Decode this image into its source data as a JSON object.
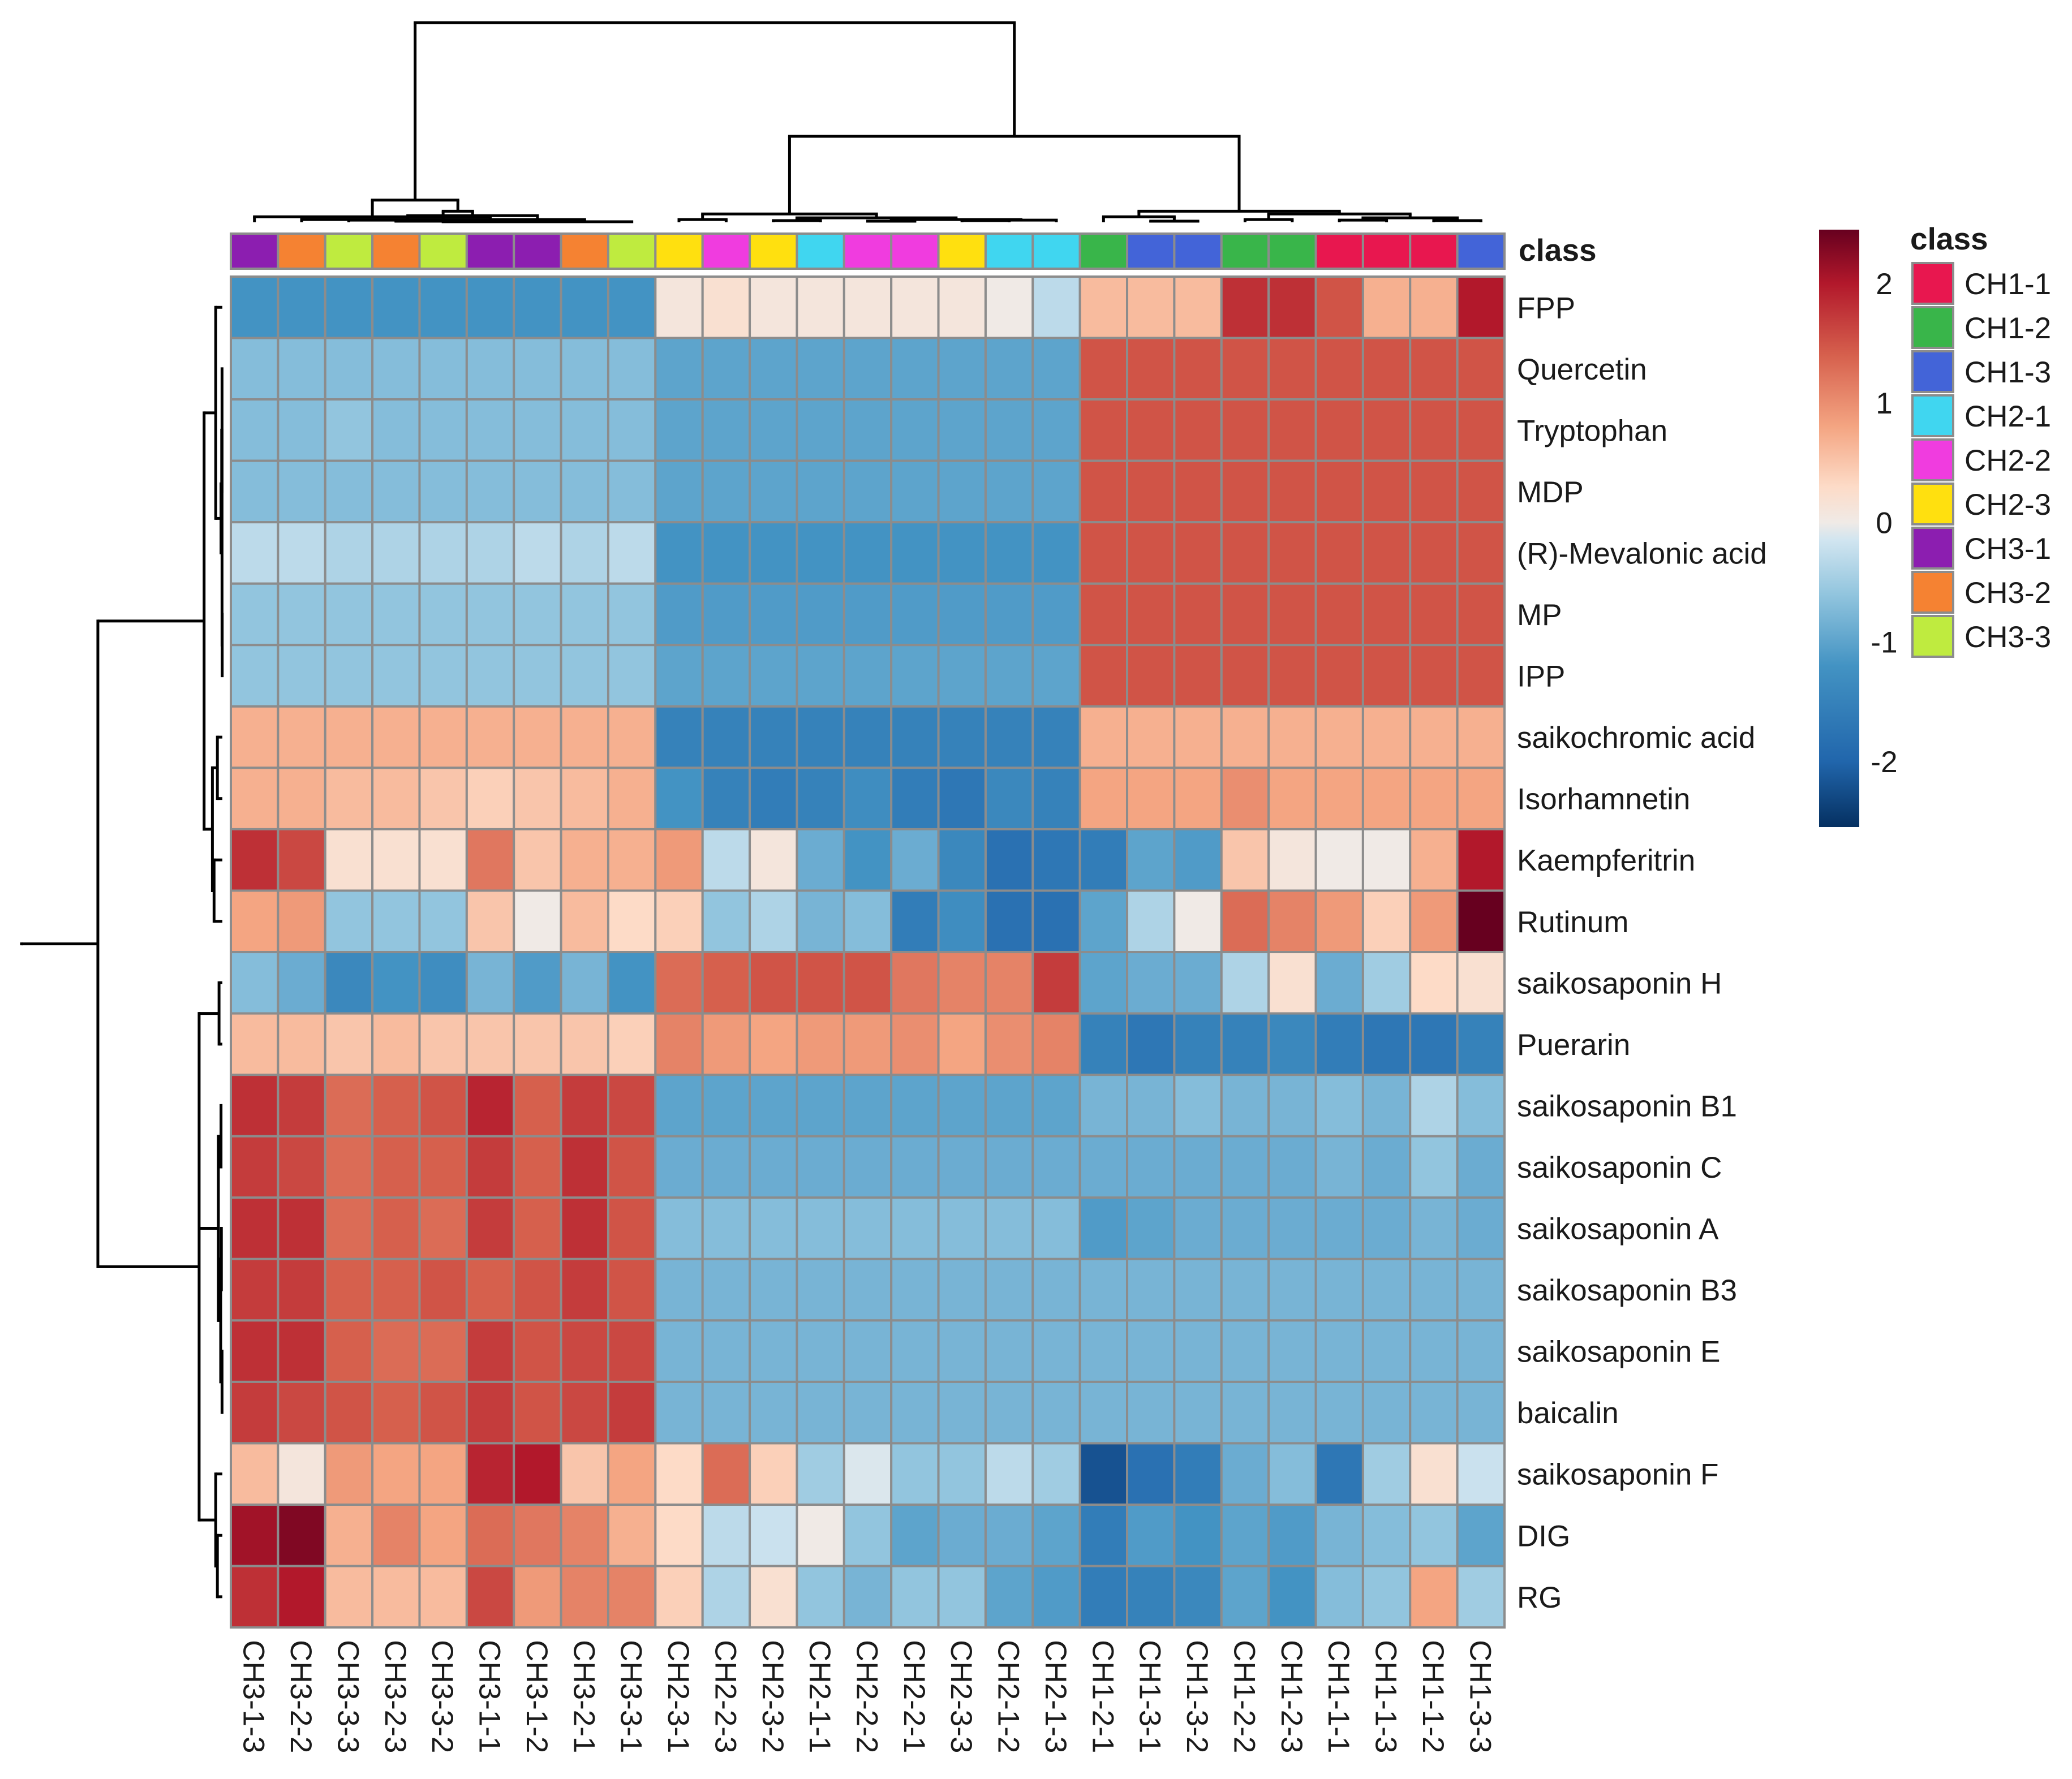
{
  "chart_data": {
    "type": "heatmap",
    "title": "",
    "annotation_title": "class",
    "legend_title": "class",
    "columns": [
      "CH3-1-3",
      "CH3-2-2",
      "CH3-3-3",
      "CH3-2-3",
      "CH3-3-2",
      "CH3-1-1",
      "CH3-1-2",
      "CH3-2-1",
      "CH3-3-1",
      "CH2-3-1",
      "CH2-2-3",
      "CH2-3-2",
      "CH2-1-1",
      "CH2-2-2",
      "CH2-2-1",
      "CH2-3-3",
      "CH2-1-2",
      "CH2-1-3",
      "CH1-2-1",
      "CH1-3-1",
      "CH1-3-2",
      "CH1-2-2",
      "CH1-2-3",
      "CH1-1-1",
      "CH1-1-3",
      "CH1-1-2",
      "CH1-3-3"
    ],
    "column_classes": [
      "CH3-1",
      "CH3-2",
      "CH3-3",
      "CH3-2",
      "CH3-3",
      "CH3-1",
      "CH3-1",
      "CH3-2",
      "CH3-3",
      "CH2-3",
      "CH2-2",
      "CH2-3",
      "CH2-1",
      "CH2-2",
      "CH2-2",
      "CH2-3",
      "CH2-1",
      "CH2-1",
      "CH1-2",
      "CH1-3",
      "CH1-3",
      "CH1-2",
      "CH1-2",
      "CH1-1",
      "CH1-1",
      "CH1-1",
      "CH1-3"
    ],
    "rows": [
      "FPP",
      "Quercetin",
      "Tryptophan",
      "MDP",
      "(R)-Mevalonic acid",
      "MP",
      "IPP",
      "saikochromic acid",
      "Isorhamnetin",
      "Kaempferitrin",
      "Rutinum",
      "saikosaponin H",
      "Puerarin",
      "saikosaponin B1",
      "saikosaponin C",
      "saikosaponin A",
      "saikosaponin B3",
      "saikosaponin E",
      "baicalin",
      "saikosaponin F",
      "DIG",
      "RG"
    ],
    "values": [
      [
        -1.2,
        -1.2,
        -1.2,
        -1.2,
        -1.2,
        -1.2,
        -1.2,
        -1.2,
        -1.2,
        0.1,
        0.2,
        0.1,
        0.1,
        0.1,
        0.1,
        0.1,
        0.0,
        -0.3,
        0.6,
        0.6,
        0.6,
        1.8,
        1.8,
        1.5,
        0.7,
        0.7,
        2.0
      ],
      [
        -0.7,
        -0.7,
        -0.7,
        -0.7,
        -0.7,
        -0.7,
        -0.7,
        -0.7,
        -0.7,
        -1.0,
        -1.0,
        -1.0,
        -1.0,
        -1.0,
        -1.0,
        -1.0,
        -1.0,
        -1.0,
        1.5,
        1.5,
        1.5,
        1.5,
        1.5,
        1.5,
        1.5,
        1.5,
        1.5
      ],
      [
        -0.7,
        -0.7,
        -0.6,
        -0.7,
        -0.7,
        -0.7,
        -0.7,
        -0.7,
        -0.7,
        -1.0,
        -1.0,
        -1.0,
        -1.0,
        -1.0,
        -1.0,
        -1.0,
        -1.0,
        -1.0,
        1.5,
        1.5,
        1.5,
        1.5,
        1.5,
        1.5,
        1.5,
        1.5,
        1.5
      ],
      [
        -0.7,
        -0.7,
        -0.7,
        -0.7,
        -0.7,
        -0.7,
        -0.7,
        -0.7,
        -0.7,
        -1.0,
        -1.0,
        -1.0,
        -1.0,
        -1.0,
        -1.0,
        -1.0,
        -1.0,
        -1.0,
        1.5,
        1.5,
        1.5,
        1.5,
        1.5,
        1.5,
        1.5,
        1.5,
        1.5
      ],
      [
        -0.3,
        -0.3,
        -0.4,
        -0.4,
        -0.4,
        -0.4,
        -0.3,
        -0.4,
        -0.3,
        -1.2,
        -1.2,
        -1.2,
        -1.2,
        -1.2,
        -1.2,
        -1.2,
        -1.2,
        -1.2,
        1.5,
        1.5,
        1.5,
        1.5,
        1.5,
        1.5,
        1.5,
        1.5,
        1.5
      ],
      [
        -0.6,
        -0.6,
        -0.6,
        -0.6,
        -0.6,
        -0.6,
        -0.6,
        -0.6,
        -0.6,
        -1.1,
        -1.1,
        -1.1,
        -1.1,
        -1.1,
        -1.1,
        -1.1,
        -1.1,
        -1.1,
        1.5,
        1.5,
        1.5,
        1.5,
        1.5,
        1.5,
        1.5,
        1.5,
        1.5
      ],
      [
        -0.6,
        -0.6,
        -0.6,
        -0.6,
        -0.6,
        -0.6,
        -0.6,
        -0.6,
        -0.6,
        -1.0,
        -1.0,
        -1.0,
        -1.0,
        -1.0,
        -1.0,
        -1.0,
        -1.0,
        -1.0,
        1.5,
        1.5,
        1.5,
        1.5,
        1.5,
        1.5,
        1.5,
        1.5,
        1.5
      ],
      [
        0.7,
        0.7,
        0.7,
        0.7,
        0.7,
        0.7,
        0.7,
        0.7,
        0.7,
        -1.5,
        -1.5,
        -1.5,
        -1.5,
        -1.5,
        -1.5,
        -1.5,
        -1.5,
        -1.5,
        0.7,
        0.7,
        0.7,
        0.7,
        0.7,
        0.7,
        0.7,
        0.7,
        0.7
      ],
      [
        0.7,
        0.7,
        0.6,
        0.6,
        0.5,
        0.4,
        0.5,
        0.6,
        0.7,
        -1.2,
        -1.5,
        -1.6,
        -1.5,
        -1.3,
        -1.6,
        -1.7,
        -1.4,
        -1.5,
        0.8,
        0.8,
        0.8,
        1.0,
        0.8,
        0.8,
        0.8,
        0.8,
        0.8
      ],
      [
        1.8,
        1.6,
        0.2,
        0.2,
        0.2,
        1.2,
        0.5,
        0.7,
        0.7,
        0.9,
        -0.3,
        0.1,
        -0.9,
        -1.2,
        -0.9,
        -1.4,
        -1.8,
        -1.7,
        -1.6,
        -1.0,
        -1.1,
        0.5,
        0.1,
        0.0,
        0.0,
        0.7,
        2.0
      ],
      [
        0.8,
        0.9,
        -0.6,
        -0.6,
        -0.6,
        0.5,
        0.0,
        0.6,
        0.3,
        0.4,
        -0.6,
        -0.4,
        -0.8,
        -0.7,
        -1.6,
        -1.3,
        -1.8,
        -1.8,
        -1.0,
        -0.4,
        0.0,
        1.3,
        1.1,
        0.9,
        0.4,
        0.9,
        2.8
      ],
      [
        -0.7,
        -0.9,
        -1.4,
        -1.2,
        -1.3,
        -0.8,
        -1.1,
        -0.8,
        -1.2,
        1.3,
        1.4,
        1.5,
        1.5,
        1.5,
        1.2,
        1.1,
        1.1,
        1.7,
        -1.0,
        -0.9,
        -0.9,
        -0.4,
        0.2,
        -0.9,
        -0.5,
        0.3,
        0.2
      ],
      [
        0.6,
        0.6,
        0.5,
        0.6,
        0.5,
        0.5,
        0.5,
        0.5,
        0.4,
        1.1,
        0.9,
        0.8,
        0.9,
        0.9,
        1.0,
        0.8,
        1.0,
        1.1,
        -1.5,
        -1.7,
        -1.5,
        -1.5,
        -1.4,
        -1.6,
        -1.7,
        -1.7,
        -1.5
      ],
      [
        1.8,
        1.7,
        1.3,
        1.4,
        1.5,
        1.9,
        1.4,
        1.7,
        1.6,
        -1.0,
        -1.0,
        -1.0,
        -1.0,
        -1.0,
        -1.0,
        -1.0,
        -1.0,
        -1.0,
        -0.8,
        -0.8,
        -0.7,
        -0.8,
        -0.8,
        -0.7,
        -0.8,
        -0.4,
        -0.7
      ],
      [
        1.7,
        1.6,
        1.3,
        1.4,
        1.4,
        1.7,
        1.4,
        1.8,
        1.5,
        -0.9,
        -0.9,
        -0.9,
        -0.9,
        -0.9,
        -0.9,
        -0.9,
        -0.9,
        -0.9,
        -0.9,
        -0.9,
        -0.9,
        -0.9,
        -0.9,
        -0.8,
        -0.9,
        -0.6,
        -0.9
      ],
      [
        1.8,
        1.8,
        1.3,
        1.4,
        1.3,
        1.7,
        1.4,
        1.8,
        1.5,
        -0.7,
        -0.7,
        -0.7,
        -0.7,
        -0.7,
        -0.7,
        -0.7,
        -0.7,
        -0.7,
        -1.1,
        -1.0,
        -0.9,
        -0.9,
        -0.9,
        -0.9,
        -0.9,
        -0.8,
        -0.9
      ],
      [
        1.7,
        1.7,
        1.4,
        1.4,
        1.5,
        1.4,
        1.5,
        1.7,
        1.5,
        -0.8,
        -0.8,
        -0.8,
        -0.8,
        -0.8,
        -0.8,
        -0.8,
        -0.8,
        -0.8,
        -0.8,
        -0.8,
        -0.8,
        -0.8,
        -0.8,
        -0.8,
        -0.8,
        -0.8,
        -0.8
      ],
      [
        1.8,
        1.8,
        1.4,
        1.3,
        1.3,
        1.7,
        1.5,
        1.6,
        1.6,
        -0.8,
        -0.8,
        -0.8,
        -0.8,
        -0.8,
        -0.8,
        -0.8,
        -0.8,
        -0.8,
        -0.8,
        -0.8,
        -0.8,
        -0.8,
        -0.8,
        -0.8,
        -0.8,
        -0.8,
        -0.8
      ],
      [
        1.7,
        1.6,
        1.5,
        1.4,
        1.5,
        1.7,
        1.5,
        1.6,
        1.7,
        -0.8,
        -0.8,
        -0.8,
        -0.8,
        -0.8,
        -0.8,
        -0.8,
        -0.8,
        -0.8,
        -0.8,
        -0.8,
        -0.8,
        -0.8,
        -0.8,
        -0.8,
        -0.8,
        -0.8,
        -0.8
      ],
      [
        0.6,
        0.1,
        0.9,
        0.8,
        0.8,
        1.9,
        2.0,
        0.5,
        0.8,
        0.3,
        1.3,
        0.4,
        -0.5,
        -0.1,
        -0.6,
        -0.6,
        -0.3,
        -0.5,
        -2.2,
        -1.8,
        -1.6,
        -0.9,
        -0.7,
        -1.7,
        -0.5,
        0.2,
        -0.2
      ],
      [
        2.1,
        2.3,
        0.7,
        1.1,
        0.8,
        1.3,
        1.2,
        1.1,
        0.7,
        0.3,
        -0.3,
        -0.2,
        0.0,
        -0.6,
        -1.0,
        -0.9,
        -0.9,
        -1.0,
        -1.6,
        -1.1,
        -1.2,
        -1.0,
        -1.1,
        -0.8,
        -0.7,
        -0.6,
        -1.0
      ],
      [
        1.8,
        2.0,
        0.6,
        0.6,
        0.6,
        1.6,
        0.9,
        1.1,
        1.1,
        0.4,
        -0.4,
        0.2,
        -0.6,
        -0.8,
        -0.6,
        -0.6,
        -1.0,
        -1.1,
        -1.6,
        -1.5,
        -1.4,
        -1.0,
        -1.2,
        -0.7,
        -0.6,
        0.8,
        -0.5
      ]
    ],
    "colorbar": {
      "ticks": [
        "2",
        "1",
        "0",
        "-1",
        "-2"
      ],
      "tick_values": [
        2,
        1,
        0,
        -1,
        -2
      ],
      "range": [
        -2.55,
        2.45
      ],
      "stops": [
        [
          -2.55,
          "#053061"
        ],
        [
          -2.0,
          "#2166AC"
        ],
        [
          -1.2,
          "#4393C3"
        ],
        [
          -0.6,
          "#92C5DE"
        ],
        [
          -0.15,
          "#D1E5F0"
        ],
        [
          0.0,
          "#F0EAE6"
        ],
        [
          0.3,
          "#FDDBC7"
        ],
        [
          0.8,
          "#F4A582"
        ],
        [
          1.4,
          "#D6604D"
        ],
        [
          2.0,
          "#B2182B"
        ],
        [
          2.45,
          "#67001F"
        ]
      ]
    },
    "class_legend": [
      {
        "label": "CH1-1",
        "color": "#E8174F"
      },
      {
        "label": "CH1-2",
        "color": "#39B54A"
      },
      {
        "label": "CH1-3",
        "color": "#4364D8"
      },
      {
        "label": "CH2-1",
        "color": "#40D6F0"
      },
      {
        "label": "CH2-2",
        "color": "#F03CDF"
      },
      {
        "label": "CH2-3",
        "color": "#FFE00F"
      },
      {
        "label": "CH3-1",
        "color": "#8C1EB0"
      },
      {
        "label": "CH3-2",
        "color": "#F58232"
      },
      {
        "label": "CH3-3",
        "color": "#BFEB3F"
      }
    ],
    "column_dendrogram": "(((0:0.1,5:0.1):0.3,((1:0.05,7:0.05):0.15,(6:0.12,(2:0.04,(3:0.02,(4:0.01,8:0.01):0.01):0.02):0.08):0.08):0.2):3.2,(((9:0.05,10:0.05):0.1,((11:0.03,12:0.03):0.05,((13:0.02,14:0.02):0.03,((15:0.03,16:0.03):0.01,17:0.04):0.01):0.03):0.07):1.4,((18:0.1,(19:0.02,20:0.02):0.08):0.1,((21:0.05,22:0.05):0.1,((23:0.04,24:0.04):0.04,(25:0.03,26:0.03):0.05):0.07):0.05):1.35):1.8)",
    "row_dendrogram": "((((0:0.2,(((1:0.01,3:0.01):0.01,(2:0.01,(5:0.005,6:0.005):0.005):0.01):0.02,4:0.04):0.16):0.3,((7:0.15,8:0.15):0.1,(9:0.25,10:0.25):0.05):0.25):3.2,((11:0.1,12:0.1):0.6,((13:0.04,14:0.04):0.08,((15:0.03,16:0.03):0.02,(17:0.01,18:0.01):0.04):0.07):0.1,(19:0.2,(20:0.15,21:0.15):0.05):0.15):0.58):2.3)"
  }
}
